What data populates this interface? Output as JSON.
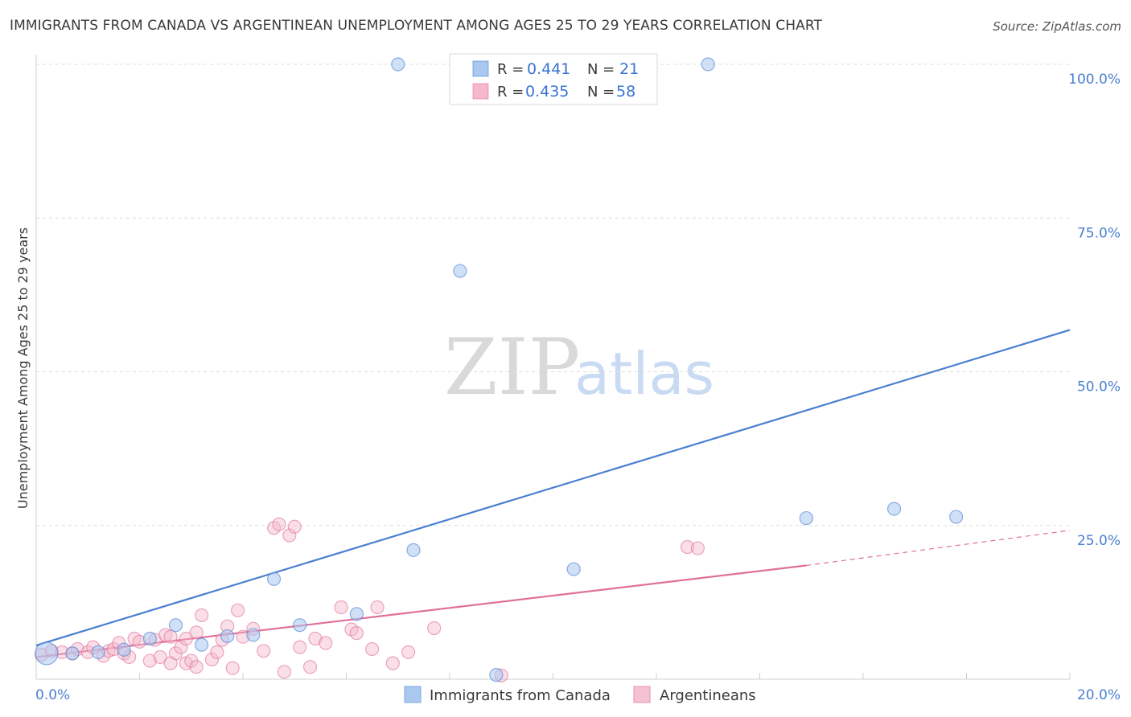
{
  "header": {
    "title": "IMMIGRANTS FROM CANADA VS ARGENTINEAN UNEMPLOYMENT AMONG AGES 25 TO 29 YEARS CORRELATION CHART",
    "source": "Source: ZipAtlas.com"
  },
  "watermark": {
    "part1": "ZIP",
    "part2": "atlas"
  },
  "legend": {
    "r_label": "R =",
    "n_label": "N =",
    "rows": [
      {
        "r": "0.441",
        "n": "21",
        "color": "#a9c8f0"
      },
      {
        "r": "0.435",
        "n": "58",
        "color": "#f5b8cc"
      }
    ]
  },
  "chart_data": {
    "type": "scatter",
    "title": "IMMIGRANTS FROM CANADA VS ARGENTINEAN UNEMPLOYMENT AMONG AGES 25 TO 29 YEARS CORRELATION CHART",
    "xlabel": "",
    "ylabel": "Unemployment Among Ages 25 to 29 years",
    "xlim": [
      0,
      20
    ],
    "ylim": [
      0,
      100
    ],
    "x_tick_labels": [
      "0.0%",
      "20.0%"
    ],
    "y_tick_labels": [
      "100.0%",
      "75.0%",
      "50.0%",
      "25.0%"
    ],
    "y_ticks": [
      100,
      75,
      50,
      25
    ],
    "grid": true,
    "legend_position": "top-center",
    "series": [
      {
        "name": "Immigrants from Canada",
        "color": "#4a7fd0",
        "fill": "#a9c8f0",
        "trend": {
          "x": [
            0,
            20
          ],
          "y": [
            5.5,
            56.8
          ],
          "dashed_from": null
        },
        "points": [
          {
            "x": 0.2,
            "y": 4.2,
            "big": true
          },
          {
            "x": 0.7,
            "y": 4.2
          },
          {
            "x": 1.2,
            "y": 4.4
          },
          {
            "x": 1.7,
            "y": 4.8
          },
          {
            "x": 2.2,
            "y": 6.6
          },
          {
            "x": 2.7,
            "y": 8.8
          },
          {
            "x": 3.2,
            "y": 5.6
          },
          {
            "x": 3.7,
            "y": 7.0
          },
          {
            "x": 4.2,
            "y": 7.2
          },
          {
            "x": 4.6,
            "y": 16.3
          },
          {
            "x": 5.1,
            "y": 8.8
          },
          {
            "x": 6.2,
            "y": 10.6
          },
          {
            "x": 7.3,
            "y": 21.0
          },
          {
            "x": 7.0,
            "y": 100
          },
          {
            "x": 8.2,
            "y": 66.4
          },
          {
            "x": 8.9,
            "y": 0.7
          },
          {
            "x": 10.4,
            "y": 17.9
          },
          {
            "x": 13.0,
            "y": 100
          },
          {
            "x": 14.9,
            "y": 26.2
          },
          {
            "x": 16.6,
            "y": 27.7
          },
          {
            "x": 17.8,
            "y": 26.4
          }
        ]
      },
      {
        "name": "Argentineans",
        "color": "#e0709a",
        "fill": "#f5b8cc",
        "trend": {
          "x": [
            0,
            14.9,
            20
          ],
          "y": [
            3.6,
            18.5,
            24.2
          ],
          "dashed_from": 14.9
        },
        "points": [
          {
            "x": 0.1,
            "y": 4.0
          },
          {
            "x": 0.3,
            "y": 4.6
          },
          {
            "x": 0.5,
            "y": 4.4
          },
          {
            "x": 0.7,
            "y": 4.2
          },
          {
            "x": 0.8,
            "y": 4.9
          },
          {
            "x": 1.0,
            "y": 4.4
          },
          {
            "x": 1.1,
            "y": 5.2
          },
          {
            "x": 1.3,
            "y": 3.8
          },
          {
            "x": 1.4,
            "y": 4.6
          },
          {
            "x": 1.5,
            "y": 4.9
          },
          {
            "x": 1.6,
            "y": 5.9
          },
          {
            "x": 1.7,
            "y": 4.2
          },
          {
            "x": 1.8,
            "y": 3.6
          },
          {
            "x": 1.9,
            "y": 6.6
          },
          {
            "x": 2.0,
            "y": 6.1
          },
          {
            "x": 2.2,
            "y": 3.0
          },
          {
            "x": 2.3,
            "y": 6.4
          },
          {
            "x": 2.4,
            "y": 3.6
          },
          {
            "x": 2.5,
            "y": 7.2
          },
          {
            "x": 2.6,
            "y": 6.9
          },
          {
            "x": 2.7,
            "y": 4.2
          },
          {
            "x": 2.8,
            "y": 5.2
          },
          {
            "x": 2.9,
            "y": 2.6
          },
          {
            "x": 2.6,
            "y": 2.6
          },
          {
            "x": 2.9,
            "y": 6.6
          },
          {
            "x": 3.1,
            "y": 7.6
          },
          {
            "x": 3.0,
            "y": 3.0
          },
          {
            "x": 3.2,
            "y": 10.4
          },
          {
            "x": 3.1,
            "y": 2.0
          },
          {
            "x": 3.4,
            "y": 3.2
          },
          {
            "x": 3.5,
            "y": 4.4
          },
          {
            "x": 3.6,
            "y": 6.4
          },
          {
            "x": 3.7,
            "y": 8.6
          },
          {
            "x": 3.8,
            "y": 1.8
          },
          {
            "x": 4.0,
            "y": 6.9
          },
          {
            "x": 4.2,
            "y": 8.2
          },
          {
            "x": 4.4,
            "y": 4.6
          },
          {
            "x": 4.6,
            "y": 24.6
          },
          {
            "x": 4.7,
            "y": 25.2
          },
          {
            "x": 4.9,
            "y": 23.4
          },
          {
            "x": 5.0,
            "y": 24.8
          },
          {
            "x": 4.8,
            "y": 1.2
          },
          {
            "x": 5.1,
            "y": 5.2
          },
          {
            "x": 5.3,
            "y": 2.0
          },
          {
            "x": 5.4,
            "y": 6.6
          },
          {
            "x": 5.6,
            "y": 5.9
          },
          {
            "x": 5.9,
            "y": 11.7
          },
          {
            "x": 6.1,
            "y": 8.1
          },
          {
            "x": 6.2,
            "y": 7.5
          },
          {
            "x": 6.5,
            "y": 4.9
          },
          {
            "x": 6.6,
            "y": 11.7
          },
          {
            "x": 6.9,
            "y": 2.6
          },
          {
            "x": 7.2,
            "y": 4.4
          },
          {
            "x": 7.7,
            "y": 8.3
          },
          {
            "x": 9.0,
            "y": 0.6
          },
          {
            "x": 12.6,
            "y": 21.5
          },
          {
            "x": 12.8,
            "y": 21.3
          },
          {
            "x": 3.9,
            "y": 11.2
          }
        ]
      }
    ]
  },
  "bottom_legend": [
    {
      "label": "Immigrants from Canada",
      "color": "#a9c8f0",
      "border": "#7fa8e0"
    },
    {
      "label": "Argentineans",
      "color": "#f5c2d2",
      "border": "#e890ae"
    }
  ]
}
